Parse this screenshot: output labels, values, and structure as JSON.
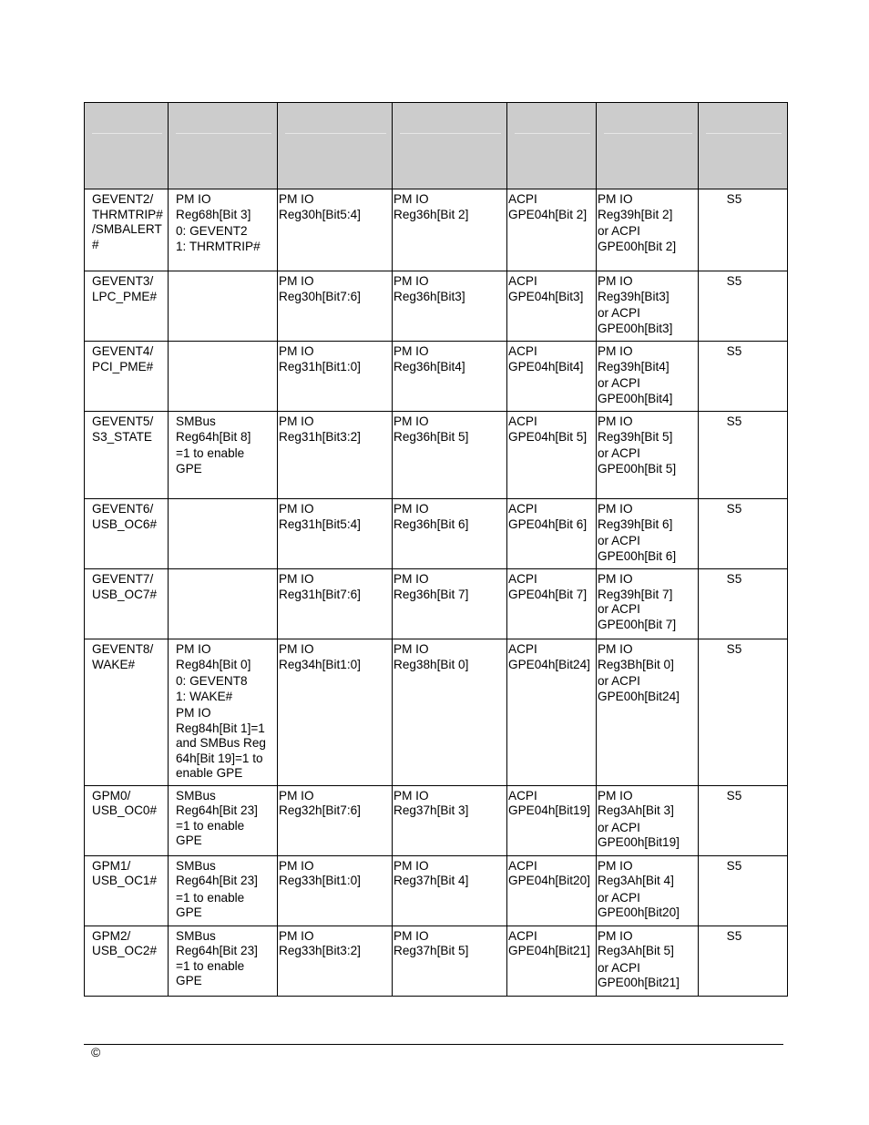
{
  "table": {
    "header": [
      "",
      "",
      "",
      "",
      "",
      "",
      ""
    ],
    "rows": [
      {
        "height": 90,
        "cells": [
          [
            "GEVENT2/\nTHRMTRIP#\n/SMBALERT\n#"
          ],
          [
            "PM IO\nReg68h[Bit 3]",
            "0: GEVENT2\n1: THRMTRIP#"
          ],
          [
            "PM IO\nReg30h[Bit5:4]"
          ],
          [
            "PM IO\nReg36h[Bit 2]"
          ],
          [
            "ACPI\nGPE04h[Bit 2]"
          ],
          [
            "PM IO\nReg39h[Bit 2]",
            "or ACPI\nGPE00h[Bit 2]"
          ],
          [
            "S5"
          ]
        ]
      },
      {
        "height": 77,
        "cells": [
          [
            "GEVENT3/\nLPC_PME#"
          ],
          [],
          [
            "PM IO\nReg30h[Bit7:6]"
          ],
          [
            "PM IO\nReg36h[Bit3]"
          ],
          [
            "ACPI\nGPE04h[Bit3]"
          ],
          [
            "PM IO\nReg39h[Bit3]",
            "or ACPI\nGPE00h[Bit3]"
          ],
          [
            "S5"
          ]
        ]
      },
      {
        "height": 77,
        "cells": [
          [
            "GEVENT4/\nPCI_PME#"
          ],
          [],
          [
            "PM IO\nReg31h[Bit1:0]"
          ],
          [
            "PM IO\nReg36h[Bit4]"
          ],
          [
            "ACPI\nGPE04h[Bit4]"
          ],
          [
            "PM IO\nReg39h[Bit4]",
            "or ACPI\nGPE00h[Bit4]"
          ],
          [
            "S5"
          ]
        ]
      },
      {
        "height": 96,
        "cells": [
          [
            "GEVENT5/\nS3_STATE"
          ],
          [
            "SMBus\nReg64h[Bit 8]",
            "=1 to enable\nGPE"
          ],
          [
            "PM IO\nReg31h[Bit3:2]"
          ],
          [
            "PM IO\nReg36h[Bit 5]"
          ],
          [
            "ACPI\nGPE04h[Bit 5]"
          ],
          [
            "PM IO\nReg39h[Bit 5]",
            "or ACPI\nGPE00h[Bit 5]"
          ],
          [
            "S5"
          ]
        ]
      },
      {
        "height": 77,
        "cells": [
          [
            "GEVENT6/\nUSB_OC6#"
          ],
          [],
          [
            "PM IO\nReg31h[Bit5:4]"
          ],
          [
            "PM IO\nReg36h[Bit 6]"
          ],
          [
            "ACPI\nGPE04h[Bit 6]"
          ],
          [
            "PM IO\nReg39h[Bit 6]",
            "or ACPI\nGPE00h[Bit 6]"
          ],
          [
            "S5"
          ]
        ]
      },
      {
        "height": 77,
        "cells": [
          [
            "GEVENT7/\nUSB_OC7#"
          ],
          [],
          [
            "PM IO\nReg31h[Bit7:6]"
          ],
          [
            "PM IO\nReg36h[Bit 7]"
          ],
          [
            "ACPI\nGPE04h[Bit 7]"
          ],
          [
            "PM IO\nReg39h[Bit 7]\nor ACPI\nGPE00h[Bit 7]"
          ],
          [
            "S5"
          ]
        ]
      },
      {
        "height": 160,
        "cells": [
          [
            "GEVENT8/\nWAKE#"
          ],
          [
            "PM IO\nReg84h[Bit 0]",
            "0: GEVENT8\n1: WAKE#",
            "PM IO\nReg84h[Bit 1]=1\nand SMBus Reg\n64h[Bit 19]=1 to\nenable GPE"
          ],
          [
            "PM IO\nReg34h[Bit1:0]"
          ],
          [
            "PM IO\nReg38h[Bit 0]"
          ],
          [
            "ACPI\nGPE04h[Bit24]"
          ],
          [
            "PM IO\nReg3Bh[Bit 0]",
            "or ACPI\nGPE00h[Bit24]"
          ],
          [
            "S5"
          ]
        ]
      },
      {
        "height": 77,
        "cells": [
          [
            "GPM0/\nUSB_OC0#"
          ],
          [
            "SMBus\nReg64h[Bit 23]\n=1 to enable\nGPE"
          ],
          [
            "PM IO\nReg32h[Bit7:6]"
          ],
          [
            "PM IO\nReg37h[Bit 3]"
          ],
          [
            "ACPI\nGPE04h[Bit19]"
          ],
          [
            "PM IO\nReg3Ah[Bit 3]",
            "or ACPI\nGPE00h[Bit19]"
          ],
          [
            "S5"
          ]
        ]
      },
      {
        "height": 77,
        "cells": [
          [
            "GPM1/\nUSB_OC1#"
          ],
          [
            "SMBus\nReg64h[Bit 23]",
            "=1 to enable\nGPE"
          ],
          [
            "PM IO\nReg33h[Bit1:0]"
          ],
          [
            "PM IO\nReg37h[Bit 4]"
          ],
          [
            "ACPI\nGPE04h[Bit20]"
          ],
          [
            "PM IO\nReg3Ah[Bit 4]",
            "or ACPI\nGPE00h[Bit20]"
          ],
          [
            "S5"
          ]
        ]
      },
      {
        "height": 77,
        "cells": [
          [
            "GPM2/\nUSB_OC2#"
          ],
          [
            "SMBus\nReg64h[Bit 23]\n=1 to enable\nGPE"
          ],
          [
            "PM IO\nReg33h[Bit3:2]"
          ],
          [
            "PM IO\nReg37h[Bit 5]"
          ],
          [
            "ACPI\nGPE04h[Bit21]"
          ],
          [
            "PM IO\nReg3Ah[Bit 5]",
            "or ACPI\nGPE00h[Bit21]"
          ],
          [
            "S5"
          ]
        ]
      }
    ]
  },
  "footer": {
    "copyright": "©"
  }
}
